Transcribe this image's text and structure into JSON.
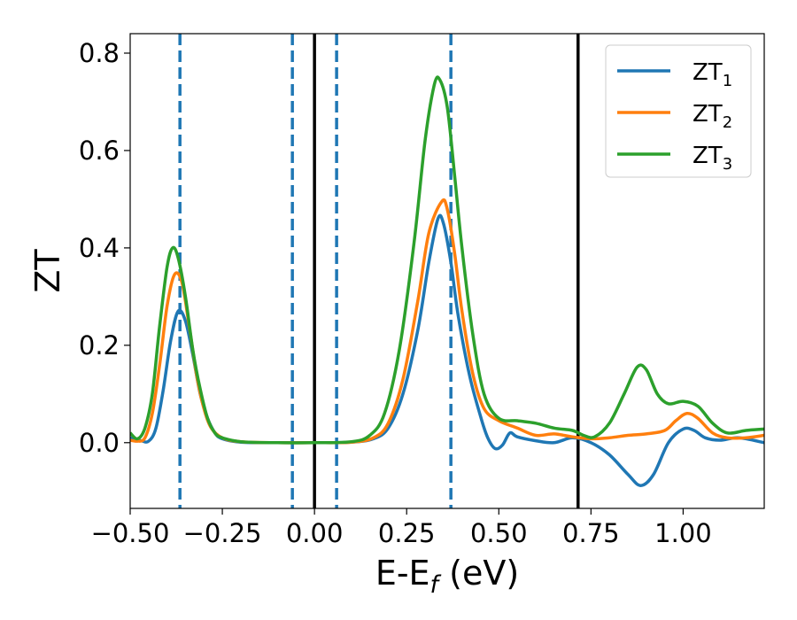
{
  "chart_data": {
    "type": "line",
    "title": "",
    "xlabel": "E-E",
    "xlabel_sub": "f",
    "xlabel_unit": " (eV)",
    "ylabel": "ZT",
    "xlim": [
      -0.5,
      1.22
    ],
    "ylim": [
      -0.135,
      0.84
    ],
    "grid": false,
    "legend_placement": "top-right",
    "xticks": [
      {
        "value": -0.5,
        "label": "−0.50"
      },
      {
        "value": -0.25,
        "label": "−0.25"
      },
      {
        "value": 0.0,
        "label": "0.00"
      },
      {
        "value": 0.25,
        "label": "0.25"
      },
      {
        "value": 0.5,
        "label": "0.50"
      },
      {
        "value": 0.75,
        "label": "0.75"
      },
      {
        "value": 1.0,
        "label": "1.00"
      }
    ],
    "yticks": [
      {
        "value": 0.0,
        "label": "0.0"
      },
      {
        "value": 0.2,
        "label": "0.2"
      },
      {
        "value": 0.4,
        "label": "0.4"
      },
      {
        "value": 0.6,
        "label": "0.6"
      },
      {
        "value": 0.8,
        "label": "0.8"
      }
    ],
    "vlines_solid": [
      0.0,
      0.715
    ],
    "vlines_dashed": [
      -0.365,
      -0.06,
      0.06,
      0.37
    ],
    "series": [
      {
        "name": "ZT",
        "sub": "1",
        "color": "#1f77b4",
        "points": [
          [
            -0.5,
            0.01
          ],
          [
            -0.47,
            0.004
          ],
          [
            -0.45,
            0.003
          ],
          [
            -0.43,
            0.03
          ],
          [
            -0.41,
            0.11
          ],
          [
            -0.39,
            0.21
          ],
          [
            -0.37,
            0.27
          ],
          [
            -0.35,
            0.25
          ],
          [
            -0.33,
            0.18
          ],
          [
            -0.31,
            0.1
          ],
          [
            -0.29,
            0.05
          ],
          [
            -0.27,
            0.02
          ],
          [
            -0.25,
            0.008
          ],
          [
            -0.2,
            0.001
          ],
          [
            -0.1,
            0.0
          ],
          [
            0.0,
            0.0
          ],
          [
            0.1,
            0.001
          ],
          [
            0.16,
            0.008
          ],
          [
            0.2,
            0.03
          ],
          [
            0.24,
            0.1
          ],
          [
            0.28,
            0.23
          ],
          [
            0.31,
            0.37
          ],
          [
            0.335,
            0.46
          ],
          [
            0.35,
            0.45
          ],
          [
            0.37,
            0.37
          ],
          [
            0.39,
            0.26
          ],
          [
            0.42,
            0.14
          ],
          [
            0.45,
            0.055
          ],
          [
            0.47,
            0.01
          ],
          [
            0.49,
            -0.012
          ],
          [
            0.51,
            -0.005
          ],
          [
            0.53,
            0.02
          ],
          [
            0.55,
            0.012
          ],
          [
            0.6,
            0.004
          ],
          [
            0.65,
            0.0
          ],
          [
            0.7,
            0.01
          ],
          [
            0.75,
            0.0
          ],
          [
            0.8,
            -0.025
          ],
          [
            0.85,
            -0.065
          ],
          [
            0.885,
            -0.088
          ],
          [
            0.92,
            -0.065
          ],
          [
            0.96,
            0.0
          ],
          [
            1.0,
            0.028
          ],
          [
            1.03,
            0.025
          ],
          [
            1.06,
            0.01
          ],
          [
            1.1,
            0.005
          ],
          [
            1.15,
            0.01
          ],
          [
            1.22,
            0.0
          ]
        ]
      },
      {
        "name": "ZT",
        "sub": "2",
        "color": "#ff7f0e",
        "points": [
          [
            -0.5,
            0.005
          ],
          [
            -0.48,
            0.003
          ],
          [
            -0.46,
            0.01
          ],
          [
            -0.44,
            0.06
          ],
          [
            -0.42,
            0.16
          ],
          [
            -0.4,
            0.28
          ],
          [
            -0.38,
            0.345
          ],
          [
            -0.36,
            0.33
          ],
          [
            -0.34,
            0.24
          ],
          [
            -0.32,
            0.14
          ],
          [
            -0.3,
            0.07
          ],
          [
            -0.28,
            0.03
          ],
          [
            -0.25,
            0.01
          ],
          [
            -0.2,
            0.002
          ],
          [
            -0.1,
            0.0
          ],
          [
            0.0,
            0.0
          ],
          [
            0.1,
            0.001
          ],
          [
            0.16,
            0.01
          ],
          [
            0.2,
            0.04
          ],
          [
            0.24,
            0.13
          ],
          [
            0.28,
            0.29
          ],
          [
            0.31,
            0.43
          ],
          [
            0.345,
            0.495
          ],
          [
            0.36,
            0.48
          ],
          [
            0.38,
            0.39
          ],
          [
            0.4,
            0.27
          ],
          [
            0.43,
            0.14
          ],
          [
            0.46,
            0.07
          ],
          [
            0.5,
            0.045
          ],
          [
            0.55,
            0.03
          ],
          [
            0.6,
            0.015
          ],
          [
            0.65,
            0.018
          ],
          [
            0.7,
            0.012
          ],
          [
            0.75,
            0.008
          ],
          [
            0.8,
            0.01
          ],
          [
            0.85,
            0.015
          ],
          [
            0.9,
            0.018
          ],
          [
            0.95,
            0.025
          ],
          [
            0.98,
            0.045
          ],
          [
            1.01,
            0.06
          ],
          [
            1.04,
            0.05
          ],
          [
            1.08,
            0.02
          ],
          [
            1.12,
            0.01
          ],
          [
            1.17,
            0.01
          ],
          [
            1.22,
            0.015
          ]
        ]
      },
      {
        "name": "ZT",
        "sub": "3",
        "color": "#2ca02c",
        "points": [
          [
            -0.5,
            0.02
          ],
          [
            -0.48,
            0.008
          ],
          [
            -0.46,
            0.03
          ],
          [
            -0.44,
            0.1
          ],
          [
            -0.42,
            0.24
          ],
          [
            -0.4,
            0.36
          ],
          [
            -0.385,
            0.4
          ],
          [
            -0.37,
            0.38
          ],
          [
            -0.35,
            0.3
          ],
          [
            -0.33,
            0.19
          ],
          [
            -0.31,
            0.11
          ],
          [
            -0.29,
            0.05
          ],
          [
            -0.27,
            0.02
          ],
          [
            -0.25,
            0.01
          ],
          [
            -0.2,
            0.002
          ],
          [
            -0.1,
            0.0
          ],
          [
            0.0,
            0.0
          ],
          [
            0.1,
            0.002
          ],
          [
            0.15,
            0.015
          ],
          [
            0.19,
            0.06
          ],
          [
            0.23,
            0.19
          ],
          [
            0.27,
            0.41
          ],
          [
            0.3,
            0.62
          ],
          [
            0.325,
            0.735
          ],
          [
            0.34,
            0.745
          ],
          [
            0.36,
            0.69
          ],
          [
            0.38,
            0.55
          ],
          [
            0.4,
            0.4
          ],
          [
            0.43,
            0.22
          ],
          [
            0.46,
            0.1
          ],
          [
            0.5,
            0.05
          ],
          [
            0.55,
            0.045
          ],
          [
            0.6,
            0.04
          ],
          [
            0.65,
            0.03
          ],
          [
            0.7,
            0.025
          ],
          [
            0.73,
            0.015
          ],
          [
            0.76,
            0.012
          ],
          [
            0.8,
            0.04
          ],
          [
            0.84,
            0.1
          ],
          [
            0.875,
            0.155
          ],
          [
            0.9,
            0.15
          ],
          [
            0.93,
            0.1
          ],
          [
            0.96,
            0.08
          ],
          [
            1.0,
            0.085
          ],
          [
            1.04,
            0.075
          ],
          [
            1.08,
            0.04
          ],
          [
            1.12,
            0.02
          ],
          [
            1.17,
            0.025
          ],
          [
            1.22,
            0.028
          ]
        ]
      }
    ]
  }
}
